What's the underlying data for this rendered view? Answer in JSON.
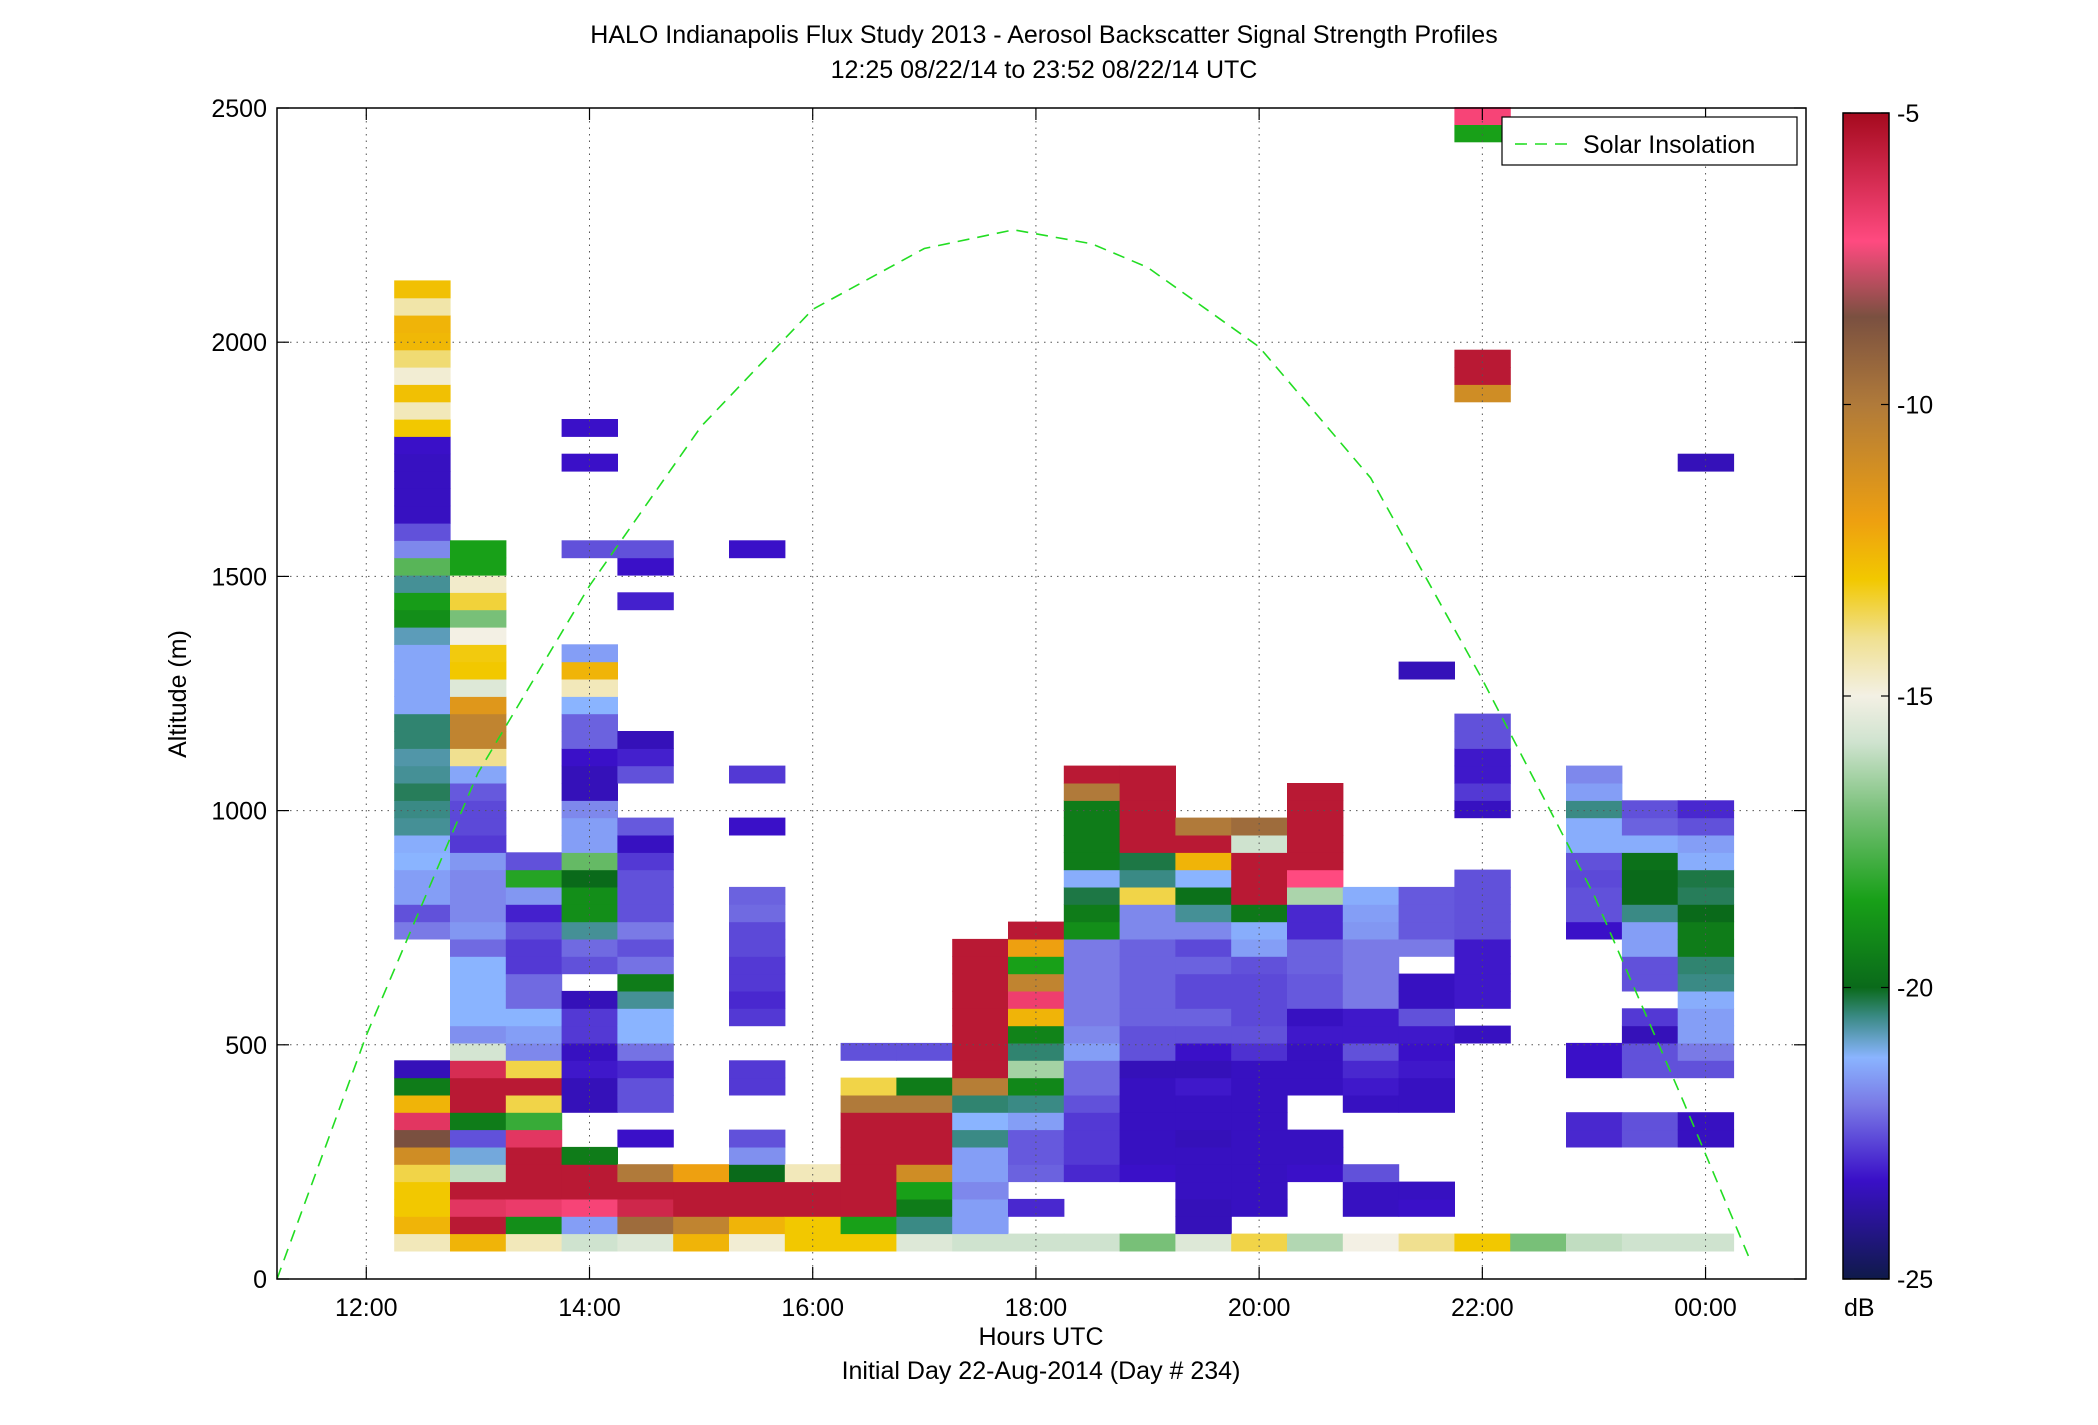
{
  "chart_data": {
    "type": "heatmap",
    "title": "HALO Indianapolis Flux Study 2013 - Aerosol Backscatter Signal Strength Profiles",
    "subtitle": "12:25 08/22/14 to 23:52 08/22/14  UTC",
    "xlabel": "Hours UTC",
    "xlabel_sub": "Initial Day 22-Aug-2014 (Day # 234)",
    "ylabel": "Altitude (m)",
    "xlim": [
      11.2,
      24.9
    ],
    "ylim": [
      0,
      2500
    ],
    "grid": true,
    "x_ticks": [
      {
        "v": 12,
        "label": "12:00"
      },
      {
        "v": 14,
        "label": "14:00"
      },
      {
        "v": 16,
        "label": "16:00"
      },
      {
        "v": 18,
        "label": "18:00"
      },
      {
        "v": 20,
        "label": "20:00"
      },
      {
        "v": 22,
        "label": "22:00"
      },
      {
        "v": 24,
        "label": "00:00"
      }
    ],
    "y_ticks": [
      0,
      500,
      1000,
      1500,
      2000,
      2500
    ],
    "colorbar": {
      "label": "dB",
      "min": -25,
      "max": -5,
      "ticks": [
        -5,
        -10,
        -15,
        -20,
        -25
      ],
      "stops": [
        {
          "v": -25,
          "color": "#0f1a4a"
        },
        {
          "v": -23.3,
          "color": "#3a10c8"
        },
        {
          "v": -22,
          "color": "#7a7ae6"
        },
        {
          "v": -21.2,
          "color": "#8ab4ff"
        },
        {
          "v": -20.5,
          "color": "#3a8a85"
        },
        {
          "v": -20,
          "color": "#0a6a1a"
        },
        {
          "v": -18.5,
          "color": "#18a018"
        },
        {
          "v": -17,
          "color": "#78c078"
        },
        {
          "v": -15.8,
          "color": "#cfe3cf"
        },
        {
          "v": -15,
          "color": "#f3f0e4"
        },
        {
          "v": -14,
          "color": "#f0e090"
        },
        {
          "v": -13,
          "color": "#f2c800"
        },
        {
          "v": -12,
          "color": "#eea010"
        },
        {
          "v": -10,
          "color": "#b07a3a"
        },
        {
          "v": -8.5,
          "color": "#7a5040"
        },
        {
          "v": -7.2,
          "color": "#ff4a80"
        },
        {
          "v": -5,
          "color": "#a50a1e"
        }
      ]
    },
    "legend": {
      "placement": "top-right",
      "entries": [
        "Solar Insolation"
      ]
    },
    "series": [
      {
        "name": "Solar Insolation",
        "type": "line",
        "style": "dashed",
        "color": "#22dd22",
        "points": [
          [
            11.2,
            0
          ],
          [
            12,
            520
          ],
          [
            13,
            1080
          ],
          [
            14,
            1480
          ],
          [
            15,
            1820
          ],
          [
            16,
            2070
          ],
          [
            17,
            2200
          ],
          [
            17.8,
            2240
          ],
          [
            18.5,
            2210
          ],
          [
            19,
            2160
          ],
          [
            20,
            1990
          ],
          [
            21,
            1710
          ],
          [
            22,
            1280
          ],
          [
            23,
            820
          ],
          [
            23.8,
            380
          ],
          [
            24.4,
            40
          ]
        ]
      }
    ],
    "cells": [
      {
        "x": 12.5,
        "v": [
          -14.5,
          -12.5,
          -13,
          -13,
          -13.5,
          -11,
          -8.5,
          -6.5,
          -12.5,
          -19.5,
          -23.5,
          null,
          null,
          null,
          null,
          null,
          null,
          null,
          -22,
          -22.5,
          -21.5,
          -21.5,
          -21.2,
          -21.3,
          -20.6,
          -20.5,
          -20.3,
          -20.6,
          -20.7,
          -20.4,
          -20.4,
          -21.4,
          -21.4,
          -21.4,
          -21.4,
          -20.8,
          -19,
          -18.6,
          -20.6,
          -17.5,
          -21.8,
          -22.5,
          -23.4,
          -23.4,
          -23.4,
          -23.4,
          -23.3,
          -13,
          -14.5,
          -12.8,
          -14.8,
          -13.8,
          -12.6,
          -12.5,
          -14.3,
          -12.8
        ]
      },
      {
        "x": 13.0,
        "v": [
          -12.5,
          -5.5,
          -6.5,
          -5.5,
          -16,
          -21,
          -22.5,
          -19.5,
          -5.5,
          -5.5,
          -6.2,
          -15.7,
          -21.7,
          -21.2,
          -21.2,
          -21.2,
          -21.2,
          -22.2,
          -21.6,
          -21.8,
          -21.8,
          -21.8,
          -21.6,
          -22.8,
          -22.6,
          -22.6,
          -22.4,
          -21.4,
          -14,
          -10.5,
          -10.5,
          -11.5,
          -15.5,
          -13,
          -13.1,
          -15,
          -17,
          -13.4,
          -14.7,
          -18.5,
          -18.5
        ]
      },
      {
        "x": 13.5,
        "v": [
          -14.5,
          -19,
          -6.7,
          -5.5,
          -5.5,
          -5.5,
          -6.5,
          -18,
          -13.5,
          -5.5,
          -13.5,
          -21.8,
          -21.5,
          -21.2,
          -22.2,
          -22.2,
          -22.8,
          -22.8,
          -22.5,
          -23.1,
          -21.6,
          -18.3,
          -22.5
        ]
      },
      {
        "x": 14.0,
        "v": [
          -15.8,
          -21.5,
          -7,
          -5.5,
          -5.5,
          -19.5,
          null,
          null,
          -23.5,
          -23.5,
          -23.2,
          -23.4,
          -22.8,
          -22.8,
          -23.5,
          null,
          -22.5,
          -22.2,
          -20.6,
          -19,
          -19,
          -20,
          -17.3,
          -21.5,
          -21.5,
          -21.8,
          -23.5,
          -23.5,
          -23.3,
          -22.3,
          -22.3,
          -21.2,
          -14.5,
          -12.5,
          -21.5,
          null,
          null,
          null,
          null,
          null,
          -22.5,
          null,
          null,
          null,
          null,
          -23.3,
          null,
          -23.3
        ]
      },
      {
        "x": 14.5,
        "v": [
          -15.5,
          -9.5,
          -6,
          -5.5,
          -10,
          null,
          -23.3,
          null,
          -22.5,
          -22.5,
          -23,
          -22.1,
          -21.2,
          -21.2,
          -20.6,
          -19.5,
          -22.1,
          -22.5,
          -22,
          -22.5,
          -22.5,
          -22.5,
          -22.8,
          -23.4,
          -22.4,
          null,
          null,
          -22.5,
          -23.1,
          -23.5,
          null,
          null,
          null,
          null,
          null,
          null,
          null,
          -23.1,
          null,
          -23.3,
          -22.5
        ]
      },
      {
        "x": 15.0,
        "v": [
          -12.5,
          -10.5,
          -5.5,
          -5.5,
          -12
        ]
      },
      {
        "x": 15.5,
        "v": [
          -14.8,
          -12.5,
          -5.5,
          -5.5,
          -20,
          -21.7,
          -22.5,
          null,
          null,
          -22.8,
          -22.8,
          null,
          null,
          -22.8,
          -23,
          -22.8,
          -22.8,
          -22.6,
          -22.6,
          -22.2,
          -22.3,
          null,
          null,
          null,
          -23.3,
          null,
          null,
          -22.8,
          null,
          null,
          null,
          null,
          null,
          null,
          null,
          null,
          null,
          null,
          null,
          null,
          -23.3
        ]
      },
      {
        "x": 16.0,
        "v": [
          -13,
          -13,
          -5.5,
          -5.5,
          -14.5
        ]
      },
      {
        "x": 16.5,
        "v": [
          -13,
          -18.5,
          -5.5,
          -5.5,
          -5.5,
          -5.5,
          -5.5,
          -5.5,
          -10,
          -13.5,
          null,
          -22.5
        ]
      },
      {
        "x": 17.0,
        "v": [
          -15.5,
          -20.5,
          -19.5,
          -18.5,
          -11,
          -5.5,
          -5.5,
          -5.5,
          -10,
          -19.5,
          null,
          -22.5
        ]
      },
      {
        "x": 17.5,
        "v": [
          -15.8,
          -21.5,
          -21.5,
          -21.8,
          -21.5,
          -21.5,
          -20.5,
          -21.2,
          -20.4,
          -10.2,
          -5.5,
          -5.5,
          -5.5,
          -5.5,
          -5.5,
          -5.5,
          -5.5,
          -5.5
        ]
      },
      {
        "x": 18.0,
        "v": [
          -15.8,
          null,
          -23,
          null,
          -22.3,
          -22.4,
          -22.4,
          -21.5,
          -20.5,
          -19.2,
          -16.4,
          -20.4,
          -19.3,
          -12.5,
          -6.8,
          -10.5,
          -18.5,
          -12,
          -5.5
        ]
      },
      {
        "x": 18.5,
        "v": [
          -15.8,
          null,
          null,
          null,
          -23,
          -22.8,
          -22.8,
          -22.8,
          -22.5,
          -22.2,
          -22.2,
          -21.5,
          -21.8,
          -22,
          -22,
          -22,
          -22,
          -22,
          -19,
          -19.5,
          -20.2,
          -21.3,
          -19.5,
          -19.5,
          -19.5,
          -19.5,
          -10,
          -5.5
        ]
      },
      {
        "x": 19.0,
        "v": [
          -17,
          null,
          null,
          null,
          -23.3,
          -23.4,
          -23.4,
          -23.4,
          -23.4,
          -23.4,
          -23.5,
          -22.5,
          -22.5,
          -22.3,
          -22.3,
          -22.3,
          -22.3,
          -22.3,
          -21.8,
          -21.8,
          -13.5,
          -20.5,
          -20.2,
          -5.5,
          -5.5,
          -5.5,
          -5.5,
          -5.5
        ]
      },
      {
        "x": 19.5,
        "v": [
          -15.5,
          -23.5,
          -23.5,
          -23.4,
          -23.4,
          -23.4,
          -23.5,
          -23.4,
          -23.4,
          -23.2,
          -23.5,
          -23.3,
          -22.5,
          -22.3,
          -22.6,
          -22.6,
          -22.3,
          -22.6,
          -21.8,
          -20.6,
          -19.8,
          -21.2,
          -12.5,
          -5.5,
          -10
        ]
      },
      {
        "x": 20.0,
        "v": [
          -13.5,
          null,
          -23.4,
          -23.4,
          -23.4,
          -23.4,
          -23.4,
          -23.4,
          -23.4,
          -23.4,
          -23.4,
          -22.9,
          -22.5,
          -22.6,
          -22.6,
          -22.6,
          -22.5,
          -21.5,
          -21.3,
          -19.6,
          -5.5,
          -5.5,
          -5.5,
          -15.8,
          -9.5
        ]
      },
      {
        "x": 20.5,
        "v": [
          -16.2,
          null,
          null,
          null,
          -23.3,
          -23.4,
          -23.4,
          null,
          null,
          -23.4,
          -23.4,
          -23.4,
          -23.2,
          -23.4,
          -22.4,
          -22.4,
          -22.3,
          -22.3,
          -23,
          -23,
          -16.3,
          -7.2,
          -5.5,
          -5.5,
          -5.5,
          -5.5,
          -5.5
        ]
      },
      {
        "x": 21.0,
        "v": [
          -15,
          null,
          -23.4,
          -23.4,
          -22.5,
          null,
          null,
          null,
          -23.4,
          -23.2,
          -23,
          -22.5,
          -23.2,
          -23.2,
          -22,
          -22,
          -22,
          -22,
          -21.6,
          -21.5,
          -21.3
        ]
      },
      {
        "x": 21.5,
        "v": [
          -14,
          null,
          -23.3,
          -23.4,
          null,
          null,
          null,
          null,
          -23.4,
          -23.4,
          -23.2,
          -23.3,
          -23.2,
          -22.5,
          -23.4,
          -23.4,
          null,
          -22,
          -22.4,
          -22.4,
          -22.4,
          null,
          null,
          null,
          null,
          null,
          null,
          null,
          null,
          null,
          null,
          null,
          null,
          -23.5
        ]
      },
      {
        "x": 22.0,
        "v": [
          -13,
          null,
          null,
          null,
          null,
          null,
          null,
          null,
          null,
          null,
          null,
          null,
          -23.4,
          null,
          -23.2,
          -23.2,
          -23.2,
          -23.2,
          -22.5,
          -22.5,
          -22.5,
          -22.5,
          null,
          null,
          null,
          -23.4,
          -22.8,
          -23.2,
          -23.2,
          -22.5,
          -22.5,
          null,
          null,
          null,
          null,
          null,
          null,
          null,
          null,
          null,
          null,
          null,
          null,
          null,
          null,
          null,
          null,
          null,
          null,
          -11,
          -5.5,
          -5.5,
          null,
          null,
          null,
          null,
          null,
          null,
          null,
          null,
          null,
          null,
          null,
          null,
          -18.5,
          -7
        ]
      },
      {
        "x": 22.5,
        "v": [
          -17
        ]
      },
      {
        "x": 23.0,
        "v": [
          -16,
          null,
          null,
          null,
          null,
          null,
          -23,
          -23,
          null,
          null,
          -23.3,
          -23.3,
          null,
          null,
          null,
          null,
          null,
          null,
          -23.3,
          -22.5,
          -22.5,
          -22.6,
          -22.5,
          -21.3,
          -21.3,
          -20.5,
          -21.5,
          -21.8
        ]
      },
      {
        "x": 23.5,
        "v": [
          -15.8,
          null,
          null,
          null,
          null,
          null,
          -22.5,
          -22.5,
          null,
          null,
          -22.5,
          -22.5,
          -23.5,
          -22.8,
          null,
          -22.5,
          -22.5,
          -21.5,
          -21.5,
          -20.5,
          -20,
          -20,
          -19.8,
          -21.3,
          -22.3,
          -22.5
        ]
      },
      {
        "x": 24.0,
        "v": [
          -15.8,
          null,
          null,
          null,
          null,
          null,
          -23.4,
          -23.4,
          null,
          null,
          -22.5,
          -22,
          -21.5,
          -21.5,
          -21.3,
          -20.5,
          -20.4,
          -19.5,
          -19.5,
          -20,
          -20.3,
          -20.2,
          -21.3,
          -21.5,
          -22.5,
          -23,
          null,
          null,
          null,
          null,
          null,
          null,
          null,
          null,
          null,
          null,
          null,
          null,
          null,
          null,
          null,
          null,
          null,
          null,
          null,
          -23.5
        ]
      }
    ]
  }
}
